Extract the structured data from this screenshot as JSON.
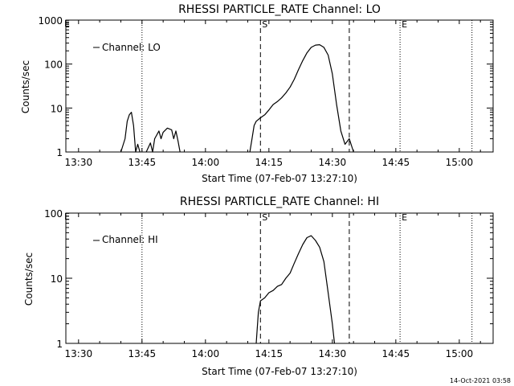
{
  "footer": {
    "date": "14-Oct-2021 03:58"
  },
  "chart_data": [
    {
      "type": "line",
      "title": "RHESSI PARTICLE_RATE Channel: LO",
      "xlabel": "Start Time (07-Feb-07 13:27:10)",
      "ylabel": "Counts/sec",
      "yscale": "log",
      "ylim": [
        1,
        1000
      ],
      "yticks": [
        "1",
        "10",
        "100",
        "1000"
      ],
      "xlim": [
        "13:27",
        "15:08"
      ],
      "xticks": [
        "13:30",
        "13:45",
        "14:00",
        "14:15",
        "14:30",
        "14:45",
        "15:00"
      ],
      "legend": {
        "position": "top-left",
        "label": "Channel: LO"
      },
      "markers": [
        {
          "time": "13:45",
          "style": "dotted",
          "label": ""
        },
        {
          "time": "14:13",
          "style": "dashed",
          "label": "S"
        },
        {
          "time": "14:34",
          "style": "dashed",
          "label": ""
        },
        {
          "time": "14:46",
          "style": "dotted",
          "label": "E"
        },
        {
          "time": "15:03",
          "style": "dotted",
          "label": ""
        }
      ],
      "edge_marker_label": "E",
      "series": [
        {
          "name": "Channel: LO",
          "segments": [
            [
              [
                "13:40",
                1
              ],
              [
                "13:41",
                2
              ],
              [
                "13:41.5",
                5
              ],
              [
                "13:42",
                7
              ],
              [
                "13:42.5",
                8
              ],
              [
                "13:43",
                4
              ],
              [
                "13:43.5",
                1
              ],
              [
                "13:44",
                1.5
              ],
              [
                "13:44.5",
                1
              ]
            ],
            [
              [
                "13:46",
                1
              ],
              [
                "13:47",
                1.6
              ],
              [
                "13:47.5",
                1
              ],
              [
                "13:48",
                2
              ],
              [
                "13:49",
                3
              ],
              [
                "13:49.5",
                2
              ],
              [
                "13:50",
                2.8
              ],
              [
                "13:51",
                3.5
              ],
              [
                "13:52",
                3.2
              ],
              [
                "13:52.5",
                2
              ],
              [
                "13:53",
                3
              ],
              [
                "13:53.5",
                1.8
              ],
              [
                "13:54",
                1
              ]
            ],
            [
              [
                "14:10.5",
                1
              ],
              [
                "14:11",
                2
              ],
              [
                "14:11.5",
                4
              ],
              [
                "14:12",
                5
              ],
              [
                "14:13",
                6
              ],
              [
                "14:14",
                7
              ],
              [
                "14:15",
                9
              ],
              [
                "14:16",
                12
              ],
              [
                "14:17",
                14
              ],
              [
                "14:18",
                17
              ],
              [
                "14:19",
                22
              ],
              [
                "14:20",
                30
              ],
              [
                "14:21",
                45
              ],
              [
                "14:22",
                75
              ],
              [
                "14:23",
                120
              ],
              [
                "14:24",
                180
              ],
              [
                "14:25",
                240
              ],
              [
                "14:26",
                270
              ],
              [
                "14:27",
                275
              ],
              [
                "14:28",
                240
              ],
              [
                "14:29",
                160
              ],
              [
                "14:30",
                60
              ],
              [
                "14:31",
                12
              ],
              [
                "14:32",
                3
              ],
              [
                "14:33",
                1.5
              ],
              [
                "14:34",
                2
              ],
              [
                "14:35",
                1
              ]
            ]
          ]
        }
      ]
    },
    {
      "type": "line",
      "title": "RHESSI PARTICLE_RATE Channel: HI",
      "xlabel": "Start Time (07-Feb-07 13:27:10)",
      "ylabel": "Counts/sec",
      "yscale": "log",
      "ylim": [
        1,
        100
      ],
      "yticks": [
        "1",
        "10",
        "100"
      ],
      "xlim": [
        "13:27",
        "15:08"
      ],
      "xticks": [
        "13:30",
        "13:45",
        "14:00",
        "14:15",
        "14:30",
        "14:45",
        "15:00"
      ],
      "legend": {
        "position": "top-left",
        "label": "Channel: HI"
      },
      "markers": [
        {
          "time": "13:45",
          "style": "dotted",
          "label": ""
        },
        {
          "time": "14:13",
          "style": "dashed",
          "label": "S"
        },
        {
          "time": "14:34",
          "style": "dashed",
          "label": ""
        },
        {
          "time": "14:46",
          "style": "dotted",
          "label": "E"
        },
        {
          "time": "15:03",
          "style": "dotted",
          "label": ""
        }
      ],
      "edge_marker_label": "E",
      "series": [
        {
          "name": "Channel: HI",
          "segments": [
            [
              [
                "14:12",
                1
              ],
              [
                "14:12.5",
                3
              ],
              [
                "14:13",
                4.5
              ],
              [
                "14:14",
                5
              ],
              [
                "14:15",
                6
              ],
              [
                "14:16",
                6.5
              ],
              [
                "14:17",
                7.5
              ],
              [
                "14:18",
                8
              ],
              [
                "14:19",
                10
              ],
              [
                "14:20",
                12
              ],
              [
                "14:21",
                17
              ],
              [
                "14:22",
                24
              ],
              [
                "14:23",
                33
              ],
              [
                "14:24",
                42
              ],
              [
                "14:25",
                45
              ],
              [
                "14:26",
                38
              ],
              [
                "14:27",
                30
              ],
              [
                "14:28",
                18
              ],
              [
                "14:29",
                6
              ],
              [
                "14:30",
                2
              ],
              [
                "14:30.5",
                1
              ]
            ]
          ]
        }
      ]
    }
  ]
}
